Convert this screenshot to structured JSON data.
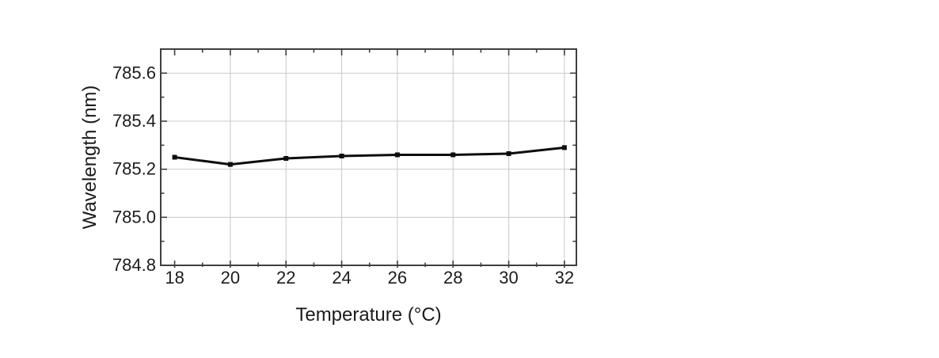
{
  "figure": {
    "background_color": "#ffffff",
    "frame_color": "#3f3f3f",
    "text_color": "#1c1c1c"
  },
  "chart_data": {
    "type": "line",
    "title": "",
    "xlabel": "Temperature (°C)",
    "ylabel": "Wavelength (nm)",
    "x": [
      18,
      20,
      22,
      24,
      26,
      28,
      30,
      32
    ],
    "series": [
      {
        "name": "wavelength",
        "values": [
          785.25,
          785.22,
          785.245,
          785.255,
          785.26,
          785.26,
          785.265,
          785.29
        ],
        "color": "#0d0d0d",
        "marker": "square"
      }
    ],
    "xlim": [
      17.5,
      32.43
    ],
    "ylim": [
      784.8,
      785.7
    ],
    "x_ticks": {
      "values": [
        18,
        20,
        22,
        24,
        26,
        28,
        30,
        32
      ],
      "labels": [
        "18",
        "20",
        "22",
        "24",
        "26",
        "28",
        "30",
        "32"
      ],
      "minor_values": [
        19,
        21,
        23,
        25,
        27,
        29,
        31
      ]
    },
    "y_ticks": {
      "values": [
        784.8,
        785.0,
        785.2,
        785.4,
        785.6
      ],
      "labels": [
        "784.8",
        "785.0",
        "785.2",
        "785.4",
        "785.6"
      ],
      "minor_values": [
        784.9,
        785.1,
        785.3,
        785.5
      ]
    },
    "grid": {
      "on": true,
      "x_values": [
        20,
        22,
        24,
        26,
        28,
        30,
        32
      ],
      "y_values": [
        785.0,
        785.2,
        785.4,
        785.6
      ],
      "color": "#c9c9c9"
    },
    "legend": {
      "visible": false,
      "entries": []
    }
  }
}
